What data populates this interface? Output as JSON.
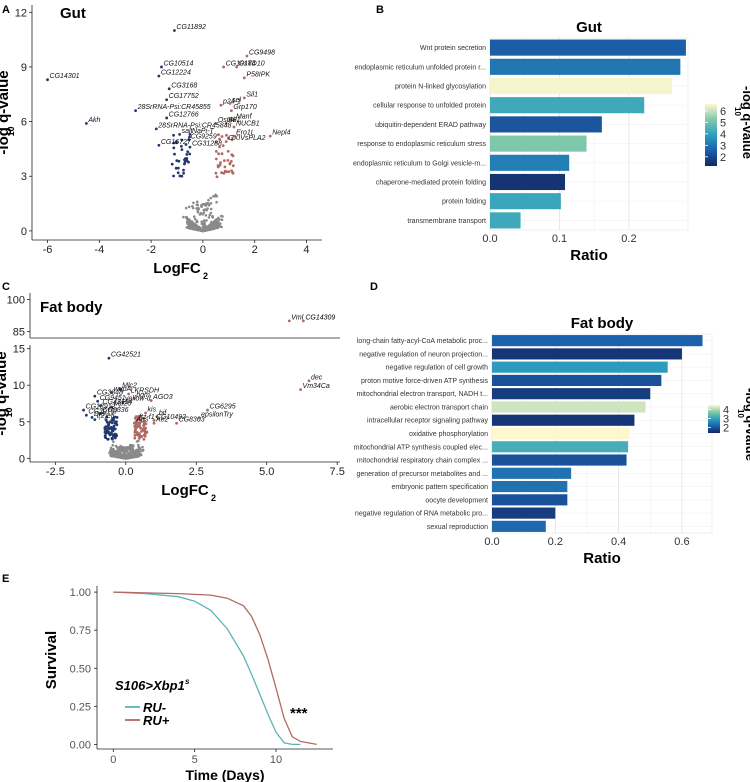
{
  "panels": {
    "A": {
      "letter": "A",
      "title": "Gut"
    },
    "B": {
      "letter": "B"
    },
    "C": {
      "letter": "C",
      "title": "Fat body"
    },
    "D": {
      "letter": "D"
    },
    "E": {
      "letter": "E"
    }
  },
  "chart_data": [
    {
      "id": "A",
      "type": "scatter",
      "title": "Gut",
      "xlabel": "LogFC",
      "xlabel_sub": "2",
      "ylabel": "-log q-value",
      "ylabel_sub": "10",
      "xlim": [
        -6.6,
        4.6
      ],
      "ylim": [
        -0.5,
        12.4
      ],
      "xticks": [
        -6,
        -4,
        -2,
        0,
        2,
        4
      ],
      "yticks": [
        0,
        3,
        6,
        9,
        12
      ],
      "colors": {
        "ns": "#8a8a8a",
        "down": "#22386e",
        "up": "#b06a64"
      },
      "labeled_points": [
        {
          "name": "CG11892",
          "x": -1.1,
          "y": 11.0
        },
        {
          "name": "CG9498",
          "x": 1.7,
          "y": 9.6
        },
        {
          "name": "CG10184",
          "x": 0.8,
          "y": 9.0
        },
        {
          "name": "GsTD10",
          "x": 1.3,
          "y": 9.0
        },
        {
          "name": "CG10514",
          "x": -1.6,
          "y": 9.0
        },
        {
          "name": "CG12224",
          "x": -1.7,
          "y": 8.5
        },
        {
          "name": "P58IPK",
          "x": 1.6,
          "y": 8.4
        },
        {
          "name": "CG14301",
          "x": -6.0,
          "y": 8.3
        },
        {
          "name": "CG3168",
          "x": -1.3,
          "y": 7.8
        },
        {
          "name": "Sil1",
          "x": 1.6,
          "y": 7.3
        },
        {
          "name": "CG17752",
          "x": -1.4,
          "y": 7.2
        },
        {
          "name": "p24-1",
          "x": 0.7,
          "y": 6.9
        },
        {
          "name": "sel",
          "x": 1.05,
          "y": 7.0
        },
        {
          "name": "28SrRNA-Psi:CR45855",
          "x": -2.6,
          "y": 6.6
        },
        {
          "name": "Grp170",
          "x": 1.1,
          "y": 6.6
        },
        {
          "name": "CG12766",
          "x": -1.4,
          "y": 6.2
        },
        {
          "name": "Manf",
          "x": 1.2,
          "y": 6.1
        },
        {
          "name": "Akh",
          "x": -4.5,
          "y": 5.9
        },
        {
          "name": "Ost48",
          "x": 0.5,
          "y": 5.9
        },
        {
          "name": "Bi-1",
          "x": 0.9,
          "y": 5.9
        },
        {
          "name": "NUCB1",
          "x": 1.2,
          "y": 5.7
        },
        {
          "name": "28SrRNA-Psi:CR45848",
          "x": -1.8,
          "y": 5.6
        },
        {
          "name": "salt",
          "x": -0.9,
          "y": 5.3
        },
        {
          "name": "NaPi-T",
          "x": -0.5,
          "y": 5.3
        },
        {
          "name": "Ero1L",
          "x": 1.2,
          "y": 5.2
        },
        {
          "name": "Nepl4",
          "x": 2.6,
          "y": 5.2
        },
        {
          "name": "CG9259",
          "x": -0.55,
          "y": 5.0
        },
        {
          "name": "GXIVsPLA2",
          "x": 0.9,
          "y": 4.9
        },
        {
          "name": "CG16727",
          "x": -1.7,
          "y": 4.7
        },
        {
          "name": "CG31288",
          "x": -0.5,
          "y": 4.6
        }
      ]
    },
    {
      "id": "B",
      "type": "bar",
      "orientation": "horizontal",
      "title": "Gut",
      "xlabel": "Ratio",
      "xlim": [
        0,
        0.285
      ],
      "xticks": [
        0.0,
        0.1,
        0.2
      ],
      "legend_title": "-log q-value",
      "legend_title_sub": "10",
      "legend_range": [
        1.2,
        6.6
      ],
      "legend_ticks": [
        2,
        3,
        4,
        5,
        6
      ],
      "categories": [
        "Wnt protein secretion",
        "endoplasmic reticulum unfolded protein r...",
        "protein N-linked glycosylation",
        "cellular response to unfolded protein",
        "ubiquitin-dependent ERAD pathway",
        "response to endoplasmic reticulum stress",
        "endoplasmic reticulum to Golgi vesicle-m...",
        "chaperone-mediated protein folding",
        "protein folding",
        "transmembrane transport"
      ],
      "values": [
        0.282,
        0.274,
        0.262,
        0.222,
        0.161,
        0.139,
        0.114,
        0.108,
        0.102,
        0.044
      ],
      "color_values": [
        2.5,
        3.0,
        6.5,
        4.2,
        2.3,
        5.2,
        3.2,
        1.5,
        4.1,
        4.2
      ]
    },
    {
      "id": "C",
      "type": "scatter",
      "title": "Fat body",
      "xlabel": "LogFC",
      "xlabel_sub": "2",
      "ylabel": "-log q-value",
      "ylabel_sub": "10",
      "xlim": [
        -3.4,
        7.6
      ],
      "ylim": [
        -0.5,
        15.5
      ],
      "top_ylim": [
        82,
        103
      ],
      "xticks": [
        -2.5,
        0.0,
        2.5,
        5.0,
        7.5
      ],
      "xtick_labels": [
        "-2.5",
        "0.0",
        "2.5",
        "5.0",
        "7.5"
      ],
      "yticks": [
        0,
        5,
        10,
        15
      ],
      "top_yticks": [
        85,
        100
      ],
      "colors": {
        "ns": "#8a8a8a",
        "down": "#22386e",
        "up": "#b06a64"
      },
      "labeled_points": [
        {
          "name": "Vml",
          "x": 5.8,
          "y": 90,
          "panel": "top"
        },
        {
          "name": "CG14309",
          "x": 6.3,
          "y": 90,
          "panel": "top"
        },
        {
          "name": "CG42521",
          "x": -0.6,
          "y": 13.7
        },
        {
          "name": "dec",
          "x": 6.5,
          "y": 10.6
        },
        {
          "name": "Vm34Ca",
          "x": 6.2,
          "y": 9.4
        },
        {
          "name": "Mlc2",
          "x": -0.2,
          "y": 9.5
        },
        {
          "name": "LKRSDH",
          "x": 0.1,
          "y": 8.8
        },
        {
          "name": "wupA",
          "x": -0.5,
          "y": 9.0
        },
        {
          "name": "CG3348",
          "x": -1.1,
          "y": 8.5
        },
        {
          "name": "bgm",
          "x": 0.3,
          "y": 8.2
        },
        {
          "name": "AGO3",
          "x": 0.9,
          "y": 7.9
        },
        {
          "name": "CG9451",
          "x": -1.0,
          "y": 7.8
        },
        {
          "name": "yellow-d",
          "x": -0.1,
          "y": 7.7
        },
        {
          "name": "CG43134",
          "x": -0.9,
          "y": 7.2
        },
        {
          "name": "Mp20",
          "x": -0.5,
          "y": 7.0
        },
        {
          "name": "CG6295",
          "x": 2.9,
          "y": 6.6
        },
        {
          "name": "CG13912",
          "x": -1.5,
          "y": 6.6
        },
        {
          "name": "kis",
          "x": 0.7,
          "y": 6.2
        },
        {
          "name": "CG9336",
          "x": -0.9,
          "y": 6.1
        },
        {
          "name": "CG30197",
          "x": -1.4,
          "y": 5.9
        },
        {
          "name": "bif",
          "x": 1.1,
          "y": 5.7
        },
        {
          "name": "epsilonTry",
          "x": 2.6,
          "y": 5.5
        },
        {
          "name": "Drs",
          "x": -1.2,
          "y": 5.6
        },
        {
          "name": "l(2)efl",
          "x": -1.1,
          "y": 5.3
        },
        {
          "name": "ftz-f1",
          "x": 0.4,
          "y": 5.2
        },
        {
          "name": "CG10492",
          "x": 1.0,
          "y": 5.2
        },
        {
          "name": "Aps",
          "x": 0.3,
          "y": 4.8
        },
        {
          "name": "Ae2",
          "x": 1.0,
          "y": 4.8
        },
        {
          "name": "CG8303",
          "x": 1.8,
          "y": 4.8
        }
      ]
    },
    {
      "id": "D",
      "type": "bar",
      "orientation": "horizontal",
      "title": "Fat body",
      "xlabel": "Ratio",
      "xlim": [
        0,
        0.695
      ],
      "xticks": [
        0.0,
        0.2,
        0.4,
        0.6
      ],
      "legend_title": "-log q-value",
      "legend_title_sub": "10",
      "legend_range": [
        1.4,
        4.5
      ],
      "legend_ticks": [
        2,
        3,
        4
      ],
      "categories": [
        "long-chain fatty-acyl-CoA metabolic proc...",
        "negative regulation of neuron projection...",
        "negative regulation of cell growth",
        "proton motive force-driven ATP synthesis",
        "mitochondrial electron transport, NADH t...",
        "aerobic electron transport chain",
        "intracellular receptor signaling pathway",
        "oxidative phosphorylation",
        "mitochondrial ATP synthesis coupled elec...",
        "mitochondrial respiratory chain complex ...",
        "generation of precursor metabolites and ...",
        "embryonic pattern specification",
        "oocyte development",
        "negative regulation of RNA metabolic pro...",
        "sexual reproduction"
      ],
      "values": [
        0.665,
        0.6,
        0.555,
        0.535,
        0.5,
        0.485,
        0.45,
        0.435,
        0.43,
        0.425,
        0.25,
        0.238,
        0.238,
        0.2,
        0.17
      ],
      "color_values": [
        2.2,
        1.6,
        2.9,
        2.0,
        1.7,
        4.2,
        1.6,
        4.6,
        3.2,
        2.0,
        2.4,
        2.4,
        2.0,
        1.7,
        2.3
      ]
    },
    {
      "id": "E",
      "type": "line",
      "title": "",
      "xlabel": "Time (Days)",
      "ylabel": "Survival",
      "xlim": [
        -1,
        13.5
      ],
      "ylim": [
        -0.03,
        1.04
      ],
      "xticks": [
        0,
        5,
        10
      ],
      "yticks": [
        0.0,
        0.25,
        0.5,
        0.75,
        1.0
      ],
      "ytick_labels": [
        "0.00",
        "0.25",
        "0.50",
        "0.75",
        "1.00"
      ],
      "genotype": "S106>Xbp1",
      "genotype_sup": "s",
      "annotation": "***",
      "series": [
        {
          "name": "RU-",
          "color": "#5bb5b5",
          "x": [
            0,
            2,
            4,
            5,
            6,
            7,
            8,
            8.5,
            9,
            9.5,
            10,
            10.5,
            11,
            11.5
          ],
          "y": [
            1.0,
            0.99,
            0.97,
            0.94,
            0.88,
            0.76,
            0.58,
            0.46,
            0.33,
            0.2,
            0.08,
            0.01,
            0.0,
            0.0
          ]
        },
        {
          "name": "RU+",
          "color": "#b26a63",
          "x": [
            0,
            2,
            4,
            6,
            7,
            8,
            8.5,
            9,
            9.5,
            10,
            10.5,
            11,
            11.5,
            12,
            12.5
          ],
          "y": [
            1.0,
            0.995,
            0.99,
            0.98,
            0.96,
            0.91,
            0.84,
            0.72,
            0.56,
            0.37,
            0.17,
            0.05,
            0.02,
            0.01,
            0.0
          ]
        }
      ]
    }
  ]
}
